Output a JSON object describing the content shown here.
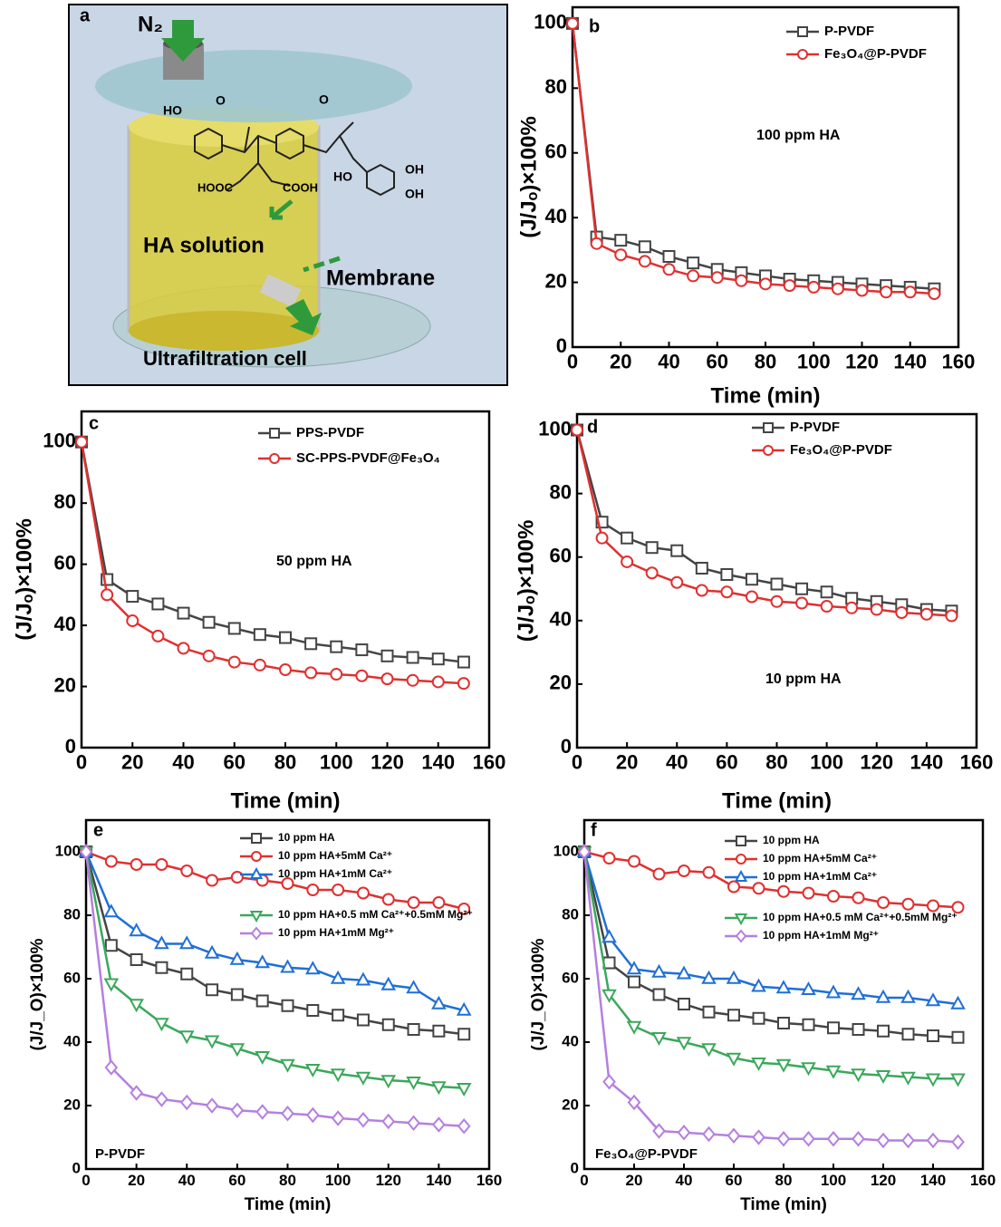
{
  "illustration": {
    "panel": "a",
    "gas": "N₂",
    "solution": "HA solution",
    "membrane": "Membrane",
    "caption": "Ultrafiltration cell",
    "molecule_labels": [
      "HO",
      "O",
      "O",
      "HOOC",
      "COOH",
      "HO",
      "OH",
      "OH"
    ]
  },
  "chart_data": [
    {
      "type": "line",
      "panel": "b",
      "xlabel": "Time (min)",
      "ylabel": "(J/Jₒ)×100%",
      "annotation": "100 ppm HA",
      "x": [
        0,
        10,
        20,
        30,
        40,
        50,
        60,
        70,
        80,
        90,
        100,
        110,
        120,
        130,
        140,
        150
      ],
      "xlim": [
        0,
        160
      ],
      "xticks": [
        0,
        20,
        40,
        60,
        80,
        100,
        120,
        140,
        160
      ],
      "ylim": [
        0,
        105
      ],
      "yticks": [
        0,
        20,
        40,
        60,
        80,
        100
      ],
      "series": [
        {
          "name": "P-PVDF",
          "color": "#444444",
          "marker": "square",
          "values": [
            100,
            34,
            33,
            31,
            28,
            26,
            24,
            23,
            22,
            21,
            20.5,
            20,
            19.5,
            19,
            18.5,
            18
          ]
        },
        {
          "name": "Fe₃O₄@P-PVDF",
          "color": "#e03030",
          "marker": "circle",
          "values": [
            100,
            32,
            28.5,
            26.5,
            24,
            22,
            21.5,
            20.5,
            19.5,
            19,
            18.5,
            18,
            17.5,
            17,
            17,
            16.5
          ]
        }
      ]
    },
    {
      "type": "line",
      "panel": "c",
      "xlabel": "Time (min)",
      "ylabel": "(J/Jₒ)×100%",
      "annotation": "50 ppm HA",
      "x": [
        0,
        10,
        20,
        30,
        40,
        50,
        60,
        70,
        80,
        90,
        100,
        110,
        120,
        130,
        140,
        150
      ],
      "xlim": [
        0,
        160
      ],
      "xticks": [
        0,
        20,
        40,
        60,
        80,
        100,
        120,
        140,
        160
      ],
      "ylim": [
        0,
        110
      ],
      "yticks": [
        0,
        20,
        40,
        60,
        80,
        100
      ],
      "series": [
        {
          "name": "PPS-PVDF",
          "color": "#444444",
          "marker": "square",
          "values": [
            100,
            55,
            49.5,
            47,
            44,
            41,
            39,
            37,
            36,
            34,
            33,
            32,
            30,
            29.5,
            29,
            28
          ]
        },
        {
          "name": "SC-PPS-PVDF@Fe₃O₄",
          "color": "#e03030",
          "marker": "circle",
          "values": [
            100,
            50,
            41.5,
            36.5,
            32.5,
            30,
            28,
            27,
            25.5,
            24.5,
            24,
            23.5,
            22.5,
            22,
            21.5,
            21
          ]
        }
      ]
    },
    {
      "type": "line",
      "panel": "d",
      "xlabel": "Time (min)",
      "ylabel": "(J/Jₒ)×100%",
      "annotation": "10 ppm HA",
      "x": [
        0,
        10,
        20,
        30,
        40,
        50,
        60,
        70,
        80,
        90,
        100,
        110,
        120,
        130,
        140,
        150
      ],
      "xlim": [
        0,
        160
      ],
      "xticks": [
        0,
        20,
        40,
        60,
        80,
        100,
        120,
        140,
        160
      ],
      "ylim": [
        0,
        105
      ],
      "yticks": [
        0,
        20,
        40,
        60,
        80,
        100
      ],
      "series": [
        {
          "name": "P-PVDF",
          "color": "#444444",
          "marker": "square",
          "values": [
            100,
            71,
            66,
            63,
            62,
            56.5,
            54.5,
            53,
            51.5,
            50,
            49,
            47,
            46,
            45,
            43.5,
            43
          ]
        },
        {
          "name": "Fe₃O₄@P-PVDF",
          "color": "#e03030",
          "marker": "circle",
          "values": [
            100,
            66,
            58.5,
            55,
            52,
            49.5,
            49,
            47.5,
            46,
            45.5,
            44.5,
            44,
            43.5,
            42.5,
            42,
            41.5
          ]
        }
      ]
    },
    {
      "type": "line",
      "panel": "e",
      "xlabel": "Time (min)",
      "ylabel": "(J/J_O)×100%",
      "annotation": "P-PVDF",
      "x": [
        0,
        10,
        20,
        30,
        40,
        50,
        60,
        70,
        80,
        90,
        100,
        110,
        120,
        130,
        140,
        150
      ],
      "xlim": [
        0,
        160
      ],
      "xticks": [
        0,
        20,
        40,
        60,
        80,
        100,
        120,
        140,
        160
      ],
      "ylim": [
        0,
        110
      ],
      "yticks": [
        0,
        20,
        40,
        60,
        80,
        100
      ],
      "series": [
        {
          "name": "10 ppm HA",
          "color": "#444444",
          "marker": "square",
          "values": [
            100,
            70.5,
            66,
            63.5,
            61.5,
            56.5,
            55,
            53,
            51.5,
            50,
            48.5,
            47,
            45.5,
            44,
            43.5,
            42.5
          ]
        },
        {
          "name": "10 ppm HA+5mM Ca²⁺",
          "color": "#e03030",
          "marker": "circle",
          "values": [
            100,
            97,
            96,
            96,
            94,
            91,
            92,
            91,
            90,
            88,
            88,
            87,
            85,
            84,
            84,
            82
          ]
        },
        {
          "name": "10 ppm HA+1mM Ca²⁺",
          "color": "#1f6fd6",
          "marker": "triangle-up",
          "values": [
            100,
            81,
            75,
            71,
            71,
            68,
            66,
            65,
            63.5,
            63,
            60,
            59.5,
            58,
            57,
            52,
            50
          ]
        },
        {
          "name": "10 ppm HA+0.5 mM Ca²⁺+0.5mM Mg²⁺",
          "color": "#3aa85a",
          "marker": "triangle-down",
          "values": [
            100,
            58.5,
            52,
            46,
            42,
            40.5,
            38,
            35.5,
            33,
            31.5,
            30,
            29,
            28,
            27.5,
            26,
            25.5
          ]
        },
        {
          "name": "10 ppm HA+1mM Mg²⁺",
          "color": "#b57fe0",
          "marker": "diamond",
          "values": [
            100,
            32,
            24,
            22,
            21,
            20,
            18.5,
            18,
            17.5,
            17,
            16,
            15.5,
            15,
            14.5,
            14,
            13.5
          ]
        }
      ]
    },
    {
      "type": "line",
      "panel": "f",
      "xlabel": "Time (min)",
      "ylabel": "(J/J_O)×100%",
      "annotation": "Fe₃O₄@P-PVDF",
      "x": [
        0,
        10,
        20,
        30,
        40,
        50,
        60,
        70,
        80,
        90,
        100,
        110,
        120,
        130,
        140,
        150
      ],
      "xlim": [
        0,
        160
      ],
      "xticks": [
        0,
        20,
        40,
        60,
        80,
        100,
        120,
        140,
        160
      ],
      "ylim": [
        0,
        110
      ],
      "yticks": [
        0,
        20,
        40,
        60,
        80,
        100
      ],
      "series": [
        {
          "name": "10 ppm HA",
          "color": "#444444",
          "marker": "square",
          "values": [
            100,
            65,
            59,
            55,
            52,
            49.5,
            48.5,
            47.5,
            46,
            45.5,
            44.5,
            44,
            43.5,
            42.5,
            42,
            41.5
          ]
        },
        {
          "name": "10 ppm HA+5mM Ca²⁺",
          "color": "#e03030",
          "marker": "circle",
          "values": [
            100,
            98,
            97,
            93,
            94,
            93.5,
            89,
            88.5,
            87.5,
            87,
            86,
            85.5,
            84,
            83.5,
            83,
            82.5
          ]
        },
        {
          "name": "10 ppm HA+1mM Ca²⁺",
          "color": "#1f6fd6",
          "marker": "triangle-up",
          "values": [
            100,
            73,
            63,
            62,
            61.5,
            60,
            60,
            57.5,
            57,
            56.5,
            55.5,
            55,
            54,
            54,
            53,
            52
          ]
        },
        {
          "name": "10 ppm HA+0.5 mM Ca²⁺+0.5mM Mg²⁺",
          "color": "#3aa85a",
          "marker": "triangle-down",
          "values": [
            100,
            55,
            45,
            41.5,
            40,
            38,
            35,
            33.5,
            33,
            32,
            31,
            30,
            29.5,
            29,
            28.5,
            28.5
          ]
        },
        {
          "name": "10 ppm HA+1mM Mg²⁺",
          "color": "#b57fe0",
          "marker": "diamond",
          "values": [
            100,
            27.5,
            21,
            12,
            11.5,
            11,
            10.5,
            10,
            9.5,
            9.5,
            9.5,
            9.5,
            9,
            9,
            9,
            8.5
          ]
        }
      ]
    }
  ]
}
